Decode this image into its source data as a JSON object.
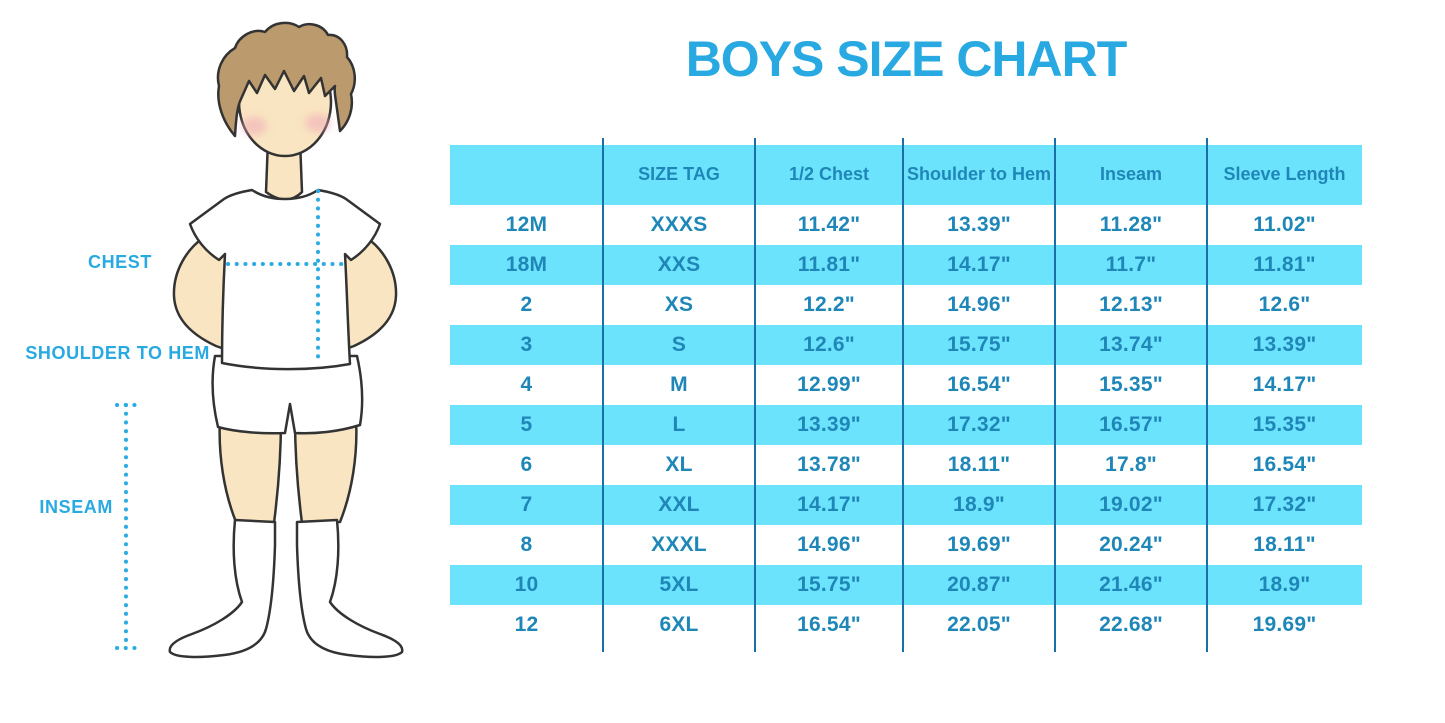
{
  "chart_data": {
    "type": "table",
    "title": "BOYS SIZE CHART",
    "columns": [
      "",
      "SIZE TAG",
      "1/2 Chest",
      "Shoulder to Hem",
      "Inseam",
      "Sleeve Length"
    ],
    "rows": [
      [
        "12M",
        "XXXS",
        "11.42\"",
        "13.39\"",
        "11.28\"",
        "11.02\""
      ],
      [
        "18M",
        "XXS",
        "11.81\"",
        "14.17\"",
        "11.7\"",
        "11.81\""
      ],
      [
        "2",
        "XS",
        "12.2\"",
        "14.96\"",
        "12.13\"",
        "12.6\""
      ],
      [
        "3",
        "S",
        "12.6\"",
        "15.75\"",
        "13.74\"",
        "13.39\""
      ],
      [
        "4",
        "M",
        "12.99\"",
        "16.54\"",
        "15.35\"",
        "14.17\""
      ],
      [
        "5",
        "L",
        "13.39\"",
        "17.32\"",
        "16.57\"",
        "15.35\""
      ],
      [
        "6",
        "XL",
        "13.78\"",
        "18.11\"",
        "17.8\"",
        "16.54\""
      ],
      [
        "7",
        "XXL",
        "14.17\"",
        "18.9\"",
        "19.02\"",
        "17.32\""
      ],
      [
        "8",
        "XXXL",
        "14.96\"",
        "19.69\"",
        "20.24\"",
        "18.11\""
      ],
      [
        "10",
        "5XL",
        "15.75\"",
        "20.87\"",
        "21.46\"",
        "18.9\""
      ],
      [
        "12",
        "6XL",
        "16.54\"",
        "22.05\"",
        "22.68\"",
        "19.69\""
      ]
    ],
    "row_striping": "white/cyan alternating, header cyan",
    "legend_position": "none",
    "grid": "vertical column dividers only"
  },
  "figure": {
    "labels": {
      "chest": "CHEST",
      "shoulder_to_hem": "SHOULDER TO HEM",
      "inseam": "INSEAM"
    }
  },
  "colors": {
    "title": "#29A9E1",
    "band": "#6CE3FC",
    "table_text": "#1F87B8",
    "divider": "#1B6FA8",
    "label": "#29A9E1",
    "dotted": "#2AACE3",
    "skin": "#F9E5C1",
    "hair": "#BB9A6E",
    "blush": "#F0A8BA",
    "outline": "#333333"
  }
}
